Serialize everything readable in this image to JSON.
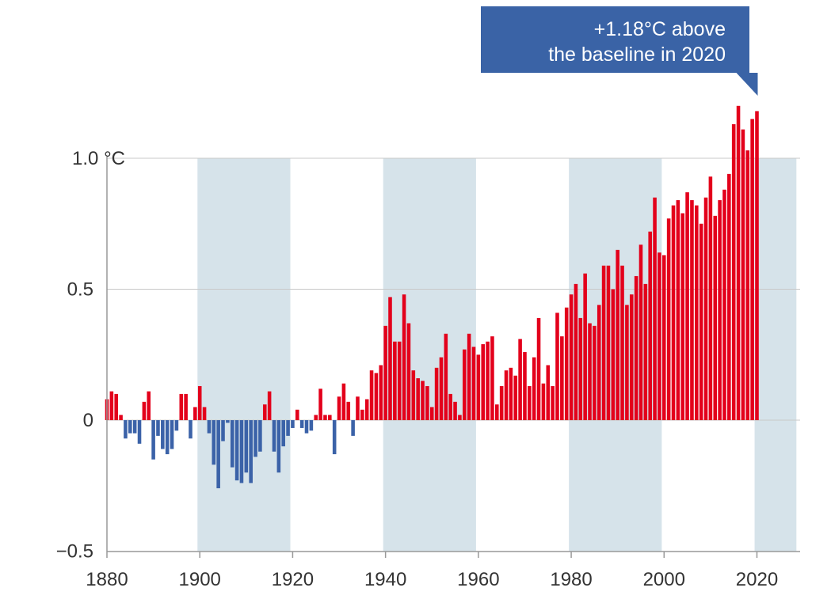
{
  "chart_data": {
    "type": "bar",
    "title": "",
    "xlabel": "",
    "ylabel": "",
    "y_unit_label": "1.0 °C",
    "ylim": [
      -0.5,
      1.2
    ],
    "xlim": [
      1880,
      2029
    ],
    "x_ticks": [
      "1880",
      "1900",
      "1920",
      "1940",
      "1960",
      "1980",
      "2000",
      "2020"
    ],
    "y_ticks": [
      {
        "value": 1.0,
        "label": "1.0 °C"
      },
      {
        "value": 0.5,
        "label": "0.5"
      },
      {
        "value": 0,
        "label": "0"
      },
      {
        "value": -0.5,
        "label": "−0.5"
      }
    ],
    "shaded_bands": [
      [
        1900,
        1920
      ],
      [
        1940,
        1960
      ],
      [
        1980,
        2000
      ],
      [
        2020,
        2029
      ]
    ],
    "grid": true,
    "annotation": {
      "line1": "+1.18°C above",
      "line2": "the baseline in 2020",
      "year": 2020,
      "value": 1.18
    },
    "colors": {
      "positive": "#e3001b",
      "negative": "#3b62a8",
      "band": "#d6e3ea",
      "callout": "#3a63a6",
      "grid": "#c8c8c8",
      "axis": "#999999"
    },
    "start_year": 1880,
    "values": [
      0.08,
      0.11,
      0.1,
      0.02,
      -0.07,
      -0.05,
      -0.05,
      -0.09,
      0.07,
      0.11,
      -0.15,
      -0.06,
      -0.11,
      -0.13,
      -0.11,
      -0.04,
      0.1,
      0.1,
      -0.07,
      0.05,
      0.13,
      0.05,
      -0.05,
      -0.17,
      -0.26,
      -0.08,
      -0.01,
      -0.18,
      -0.23,
      -0.24,
      -0.2,
      -0.24,
      -0.14,
      -0.12,
      0.06,
      0.11,
      -0.12,
      -0.2,
      -0.1,
      -0.06,
      -0.03,
      0.04,
      -0.03,
      -0.05,
      -0.04,
      0.02,
      0.12,
      0.02,
      0.02,
      -0.13,
      0.09,
      0.14,
      0.07,
      -0.06,
      0.09,
      0.04,
      0.08,
      0.19,
      0.18,
      0.21,
      0.36,
      0.47,
      0.3,
      0.3,
      0.48,
      0.37,
      0.19,
      0.16,
      0.15,
      0.13,
      0.05,
      0.2,
      0.24,
      0.33,
      0.1,
      0.07,
      0.02,
      0.27,
      0.33,
      0.28,
      0.25,
      0.29,
      0.3,
      0.32,
      0.06,
      0.13,
      0.19,
      0.2,
      0.17,
      0.31,
      0.26,
      0.13,
      0.24,
      0.39,
      0.14,
      0.21,
      0.13,
      0.41,
      0.32,
      0.43,
      0.48,
      0.52,
      0.39,
      0.56,
      0.37,
      0.36,
      0.44,
      0.59,
      0.59,
      0.5,
      0.65,
      0.59,
      0.44,
      0.48,
      0.55,
      0.67,
      0.52,
      0.72,
      0.85,
      0.64,
      0.63,
      0.77,
      0.82,
      0.84,
      0.79,
      0.87,
      0.84,
      0.82,
      0.75,
      0.85,
      0.93,
      0.78,
      0.84,
      0.88,
      0.94,
      1.13,
      1.2,
      1.11,
      1.03,
      1.15,
      1.18
    ]
  }
}
